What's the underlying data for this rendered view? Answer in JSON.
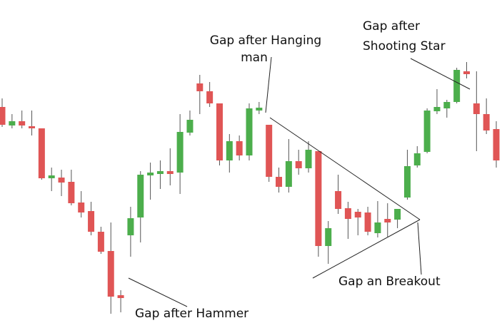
{
  "chart_data": {
    "type": "candlestick",
    "ylim": [
      0,
      463
    ],
    "up_color": "#4cae4c",
    "down_color": "#e05555",
    "wick_color": "#555555",
    "series": [
      {
        "open": [
          313,
          287,
          293,
          286,
          283,
          213,
          214,
          208,
          179,
          167,
          138,
          111,
          49,
          133,
          158,
          217,
          219,
          223,
          221,
          277,
          346,
          335,
          318,
          238,
          265,
          245,
          308,
          288,
          215,
          201,
          237,
          227,
          251,
          118,
          195,
          171,
          166,
          165,
          136,
          156,
          155,
          186,
          231,
          250,
          307,
          311,
          320,
          363,
          318,
          303,
          282
        ],
        "high": [
          325,
          303,
          308,
          308,
          283,
          228,
          225,
          225,
          195,
          180,
          145,
          151,
          56,
          173,
          223,
          235,
          238,
          255,
          303,
          308,
          358,
          348,
          318,
          275,
          273,
          318,
          320,
          288,
          228,
          268,
          253,
          265,
          251,
          153,
          218,
          180,
          170,
          173,
          181,
          178,
          170,
          253,
          258,
          311,
          338,
          323,
          368,
          376,
          363,
          325,
          293
        ],
        "low": [
          285,
          283,
          283,
          273,
          211,
          195,
          188,
          175,
          158,
          133,
          107,
          23,
          25,
          103,
          123,
          183,
          198,
          203,
          191,
          273,
          303,
          313,
          231,
          221,
          238,
          238,
          303,
          208,
          193,
          193,
          218,
          221,
          103,
          93,
          163,
          128,
          133,
          133,
          130,
          131,
          143,
          183,
          228,
          248,
          303,
          298,
          318,
          353,
          251,
          275,
          228
        ],
        "close": [
          288,
          293,
          287,
          283,
          213,
          217,
          207,
          178,
          165,
          138,
          110,
          47,
          45,
          157,
          218,
          221,
          223,
          219,
          278,
          295,
          335,
          318,
          238,
          265,
          245,
          311,
          312,
          215,
          201,
          237,
          227,
          253,
          118,
          143,
          170,
          156,
          158,
          138,
          151,
          151,
          170,
          230,
          248,
          308,
          313,
          320,
          365,
          359,
          303,
          280,
          238
        ]
      }
    ],
    "annotations": {
      "hanging_man": [
        "Gap after Hanging",
        "man"
      ],
      "shooting_star": [
        "Gap after",
        "Shooting Star"
      ],
      "hammer": [
        "Gap after Hammer"
      ],
      "breakout": [
        "Gap an Breakout"
      ]
    }
  }
}
